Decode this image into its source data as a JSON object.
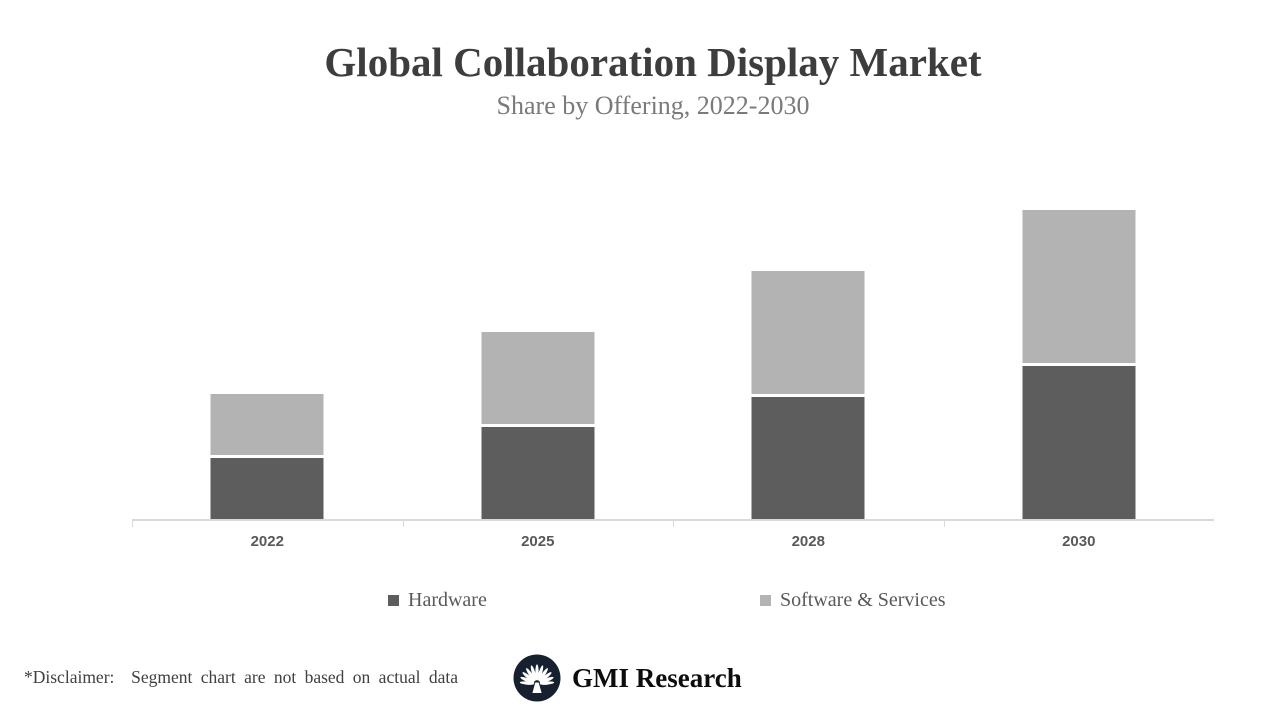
{
  "header": {
    "title": "Global Collaboration Display Market",
    "subtitle": "Share by Offering, 2022-2030"
  },
  "chart_data": {
    "type": "bar",
    "stacked": true,
    "categories": [
      "2022",
      "2025",
      "2028",
      "2030"
    ],
    "series": [
      {
        "name": "Hardware",
        "color": "#5d5d5d",
        "values": [
          1.0,
          1.5,
          2.0,
          2.5
        ]
      },
      {
        "name": "Software & Services",
        "color": "#b3b3b3",
        "values": [
          1.0,
          1.5,
          2.0,
          2.5
        ]
      }
    ],
    "title": "Global Collaboration Display Market",
    "subtitle": "Share by Offering, 2022-2030",
    "xlabel": "",
    "ylabel": "",
    "ylim": [
      0,
      5.2
    ],
    "y_axis_visible": false,
    "grid": false,
    "legend_position": "bottom",
    "axis_line_color": "#d9d9d9",
    "segment_divider_color": "#ffffff"
  },
  "footer": {
    "disclaimer": "*Disclaimer:  Segment chart are not based on actual data",
    "brand": "GMI Research"
  },
  "colors": {
    "title": "#3d3d3d",
    "subtitle": "#7a7a7a",
    "axis": "#d9d9d9",
    "label": "#595959",
    "logo_disc": "#16202e"
  }
}
